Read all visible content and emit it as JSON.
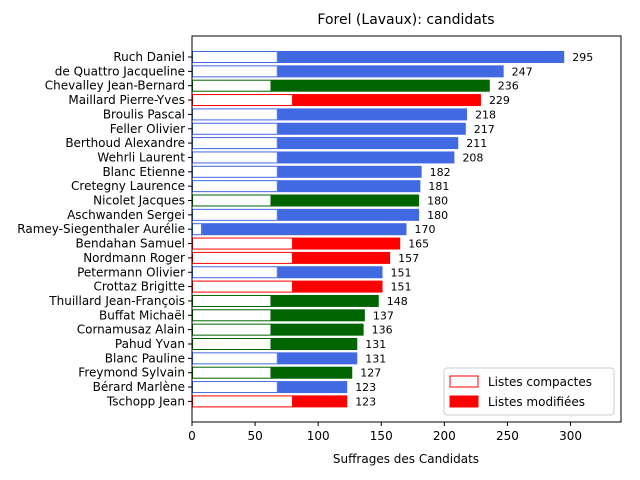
{
  "chart_data": {
    "type": "bar",
    "orientation": "horizontal",
    "stacked": true,
    "title": "Forel (Lavaux): candidats",
    "xlabel": "Suffrages des Candidats",
    "ylabel": "",
    "xlim": [
      0,
      340
    ],
    "xticks": [
      0,
      50,
      100,
      150,
      200,
      250,
      300
    ],
    "grid": false,
    "legend_position": "bottom-right",
    "legend": [
      {
        "name": "Listes compactes",
        "style": "outline"
      },
      {
        "name": "Listes modifiées",
        "style": "filled"
      }
    ],
    "party_colors": {
      "blue": "#4169e1",
      "green": "#006400",
      "red": "#ff0000"
    },
    "candidates": [
      {
        "name": "Ruch Daniel",
        "total": 295,
        "compact": 68,
        "color": "#4169e1"
      },
      {
        "name": "de Quattro Jacqueline",
        "total": 247,
        "compact": 68,
        "color": "#4169e1"
      },
      {
        "name": "Chevalley Jean-Bernard",
        "total": 236,
        "compact": 63,
        "color": "#006400"
      },
      {
        "name": "Maillard Pierre-Yves",
        "total": 229,
        "compact": 80,
        "color": "#ff0000"
      },
      {
        "name": "Broulis Pascal",
        "total": 218,
        "compact": 68,
        "color": "#4169e1"
      },
      {
        "name": "Feller Olivier",
        "total": 217,
        "compact": 68,
        "color": "#4169e1"
      },
      {
        "name": "Berthoud Alexandre",
        "total": 211,
        "compact": 68,
        "color": "#4169e1"
      },
      {
        "name": "Wehrli Laurent",
        "total": 208,
        "compact": 68,
        "color": "#4169e1"
      },
      {
        "name": "Blanc Etienne",
        "total": 182,
        "compact": 68,
        "color": "#4169e1"
      },
      {
        "name": "Cretegny Laurence",
        "total": 181,
        "compact": 68,
        "color": "#4169e1"
      },
      {
        "name": "Nicolet Jacques",
        "total": 180,
        "compact": 63,
        "color": "#006400"
      },
      {
        "name": "Aschwanden Sergei",
        "total": 180,
        "compact": 68,
        "color": "#4169e1"
      },
      {
        "name": "Ramey-Siegenthaler Aurélie",
        "total": 170,
        "compact": 8,
        "color": "#4169e1"
      },
      {
        "name": "Bendahan Samuel",
        "total": 165,
        "compact": 80,
        "color": "#ff0000"
      },
      {
        "name": "Nordmann Roger",
        "total": 157,
        "compact": 80,
        "color": "#ff0000"
      },
      {
        "name": "Petermann Olivier",
        "total": 151,
        "compact": 68,
        "color": "#4169e1"
      },
      {
        "name": "Crottaz Brigitte",
        "total": 151,
        "compact": 80,
        "color": "#ff0000"
      },
      {
        "name": "Thuillard Jean-François",
        "total": 148,
        "compact": 63,
        "color": "#006400"
      },
      {
        "name": "Buffat Michaël",
        "total": 137,
        "compact": 63,
        "color": "#006400"
      },
      {
        "name": "Cornamusaz Alain",
        "total": 136,
        "compact": 63,
        "color": "#006400"
      },
      {
        "name": "Pahud Yvan",
        "total": 131,
        "compact": 63,
        "color": "#006400"
      },
      {
        "name": "Blanc Pauline",
        "total": 131,
        "compact": 68,
        "color": "#4169e1"
      },
      {
        "name": "Freymond Sylvain",
        "total": 127,
        "compact": 63,
        "color": "#006400"
      },
      {
        "name": "Bérard Marlène",
        "total": 123,
        "compact": 68,
        "color": "#4169e1"
      },
      {
        "name": "Tschopp Jean",
        "total": 123,
        "compact": 80,
        "color": "#ff0000"
      }
    ]
  }
}
